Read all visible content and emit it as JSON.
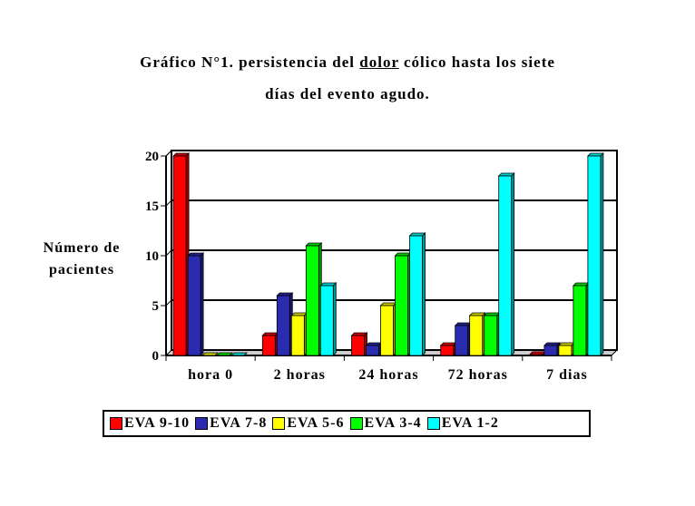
{
  "chart_data": {
    "type": "bar",
    "title_parts": {
      "line1_prefix": "Gráfico N°1.  persistencia del ",
      "line1_underlined": "dolor",
      "line1_suffix": " cólico hasta los siete",
      "line2": "días del evento agudo."
    },
    "ylabel_lines": [
      "Número de",
      "pacientes"
    ],
    "xlabel": "",
    "categories": [
      "hora 0",
      "2 horas",
      "24 horas",
      "72 horas",
      "7 dias"
    ],
    "ylim": [
      0,
      20
    ],
    "yticks": [
      0,
      5,
      10,
      15,
      20
    ],
    "grid": true,
    "legend_placement": "bottom",
    "series": [
      {
        "name": "EVA 9-10",
        "color": "#ff0000",
        "values": [
          20,
          2,
          2,
          1,
          0.1
        ]
      },
      {
        "name": "EVA 7-8",
        "color": "#2b2bb0",
        "values": [
          10,
          6,
          1,
          3,
          1
        ]
      },
      {
        "name": "EVA 5-6",
        "color": "#ffff00",
        "values": [
          0,
          4,
          5,
          4,
          1
        ]
      },
      {
        "name": "EVA 3-4",
        "color": "#00ff00",
        "values": [
          0,
          11,
          10,
          4,
          7
        ]
      },
      {
        "name": "EVA 1-2",
        "color": "#00ffff",
        "values": [
          0,
          7,
          12,
          18,
          20
        ]
      }
    ]
  }
}
